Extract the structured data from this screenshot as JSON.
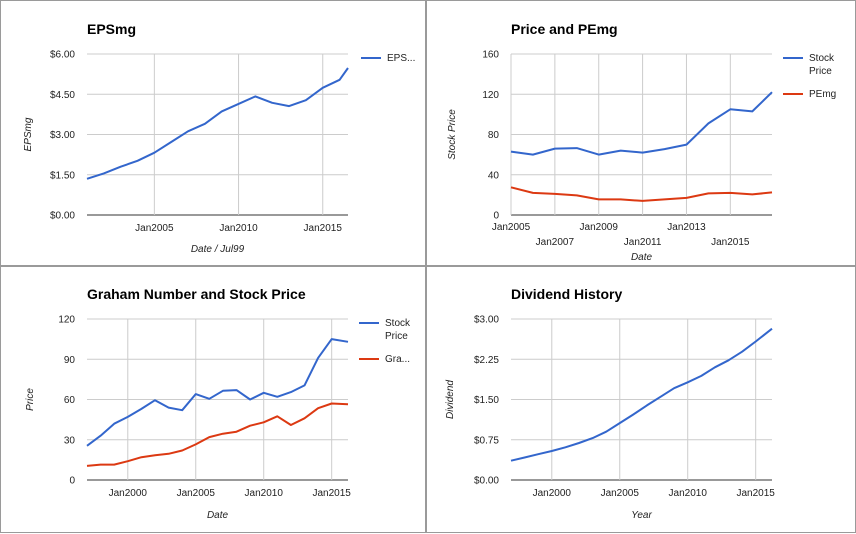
{
  "chart_data": [
    {
      "type": "line",
      "title": "EPSmg",
      "xlabel": "Date / Jul99",
      "ylabel": "EPSmg",
      "ylim": [
        0,
        6
      ],
      "yticks": [
        "$0.00",
        "$1.50",
        "$3.00",
        "$4.50",
        "$6.00"
      ],
      "yvals": [
        0,
        1.5,
        3,
        4.5,
        6
      ],
      "xrange": [
        2001,
        2016.5
      ],
      "xticks": [
        {
          "label": "Jan2005",
          "x": 2005
        },
        {
          "label": "Jan2010",
          "x": 2010
        },
        {
          "label": "Jan2015",
          "x": 2015
        }
      ],
      "grid": true,
      "legend_position": "right",
      "series": [
        {
          "name": "EPS...",
          "color": "#3366cc",
          "x": [
            2001,
            2002,
            2003,
            2004,
            2005,
            2006,
            2007,
            2008,
            2009,
            2010,
            2011,
            2012,
            2013,
            2014,
            2015,
            2016,
            2016.5
          ],
          "y": [
            1.35,
            1.55,
            1.8,
            2.02,
            2.32,
            2.72,
            3.12,
            3.4,
            3.86,
            4.14,
            4.42,
            4.18,
            4.06,
            4.28,
            4.74,
            5.04,
            5.48
          ]
        }
      ]
    },
    {
      "type": "line",
      "title": "Price and PEmg",
      "xlabel": "Date",
      "ylabel": "Stock Price",
      "ylim": [
        0,
        160
      ],
      "yticks": [
        "0",
        "40",
        "80",
        "120",
        "160"
      ],
      "yvals": [
        0,
        40,
        80,
        120,
        160
      ],
      "xrange": [
        2005,
        2016.9
      ],
      "xticks": [
        {
          "label": "Jan2005",
          "x": 2005,
          "row": 0
        },
        {
          "label": "Jan2007",
          "x": 2007,
          "row": 1
        },
        {
          "label": "Jan2009",
          "x": 2009,
          "row": 0
        },
        {
          "label": "Jan2011",
          "x": 2011,
          "row": 1
        },
        {
          "label": "Jan2013",
          "x": 2013,
          "row": 0
        },
        {
          "label": "Jan2015",
          "x": 2015,
          "row": 1
        }
      ],
      "grid": true,
      "legend_position": "right",
      "series": [
        {
          "name": "Stock Price",
          "name_lines": [
            "Stock",
            "Price"
          ],
          "color": "#3366cc",
          "x": [
            2005,
            2006,
            2007,
            2008,
            2009,
            2010,
            2011,
            2012,
            2013,
            2014,
            2015,
            2016,
            2016.9
          ],
          "y": [
            63,
            60,
            66,
            66.5,
            60,
            64,
            62,
            65.5,
            70,
            91,
            105,
            103,
            122
          ]
        },
        {
          "name": "PEmg",
          "name_lines": [
            "PEmg"
          ],
          "color": "#dc3912",
          "x": [
            2005,
            2006,
            2007,
            2008,
            2009,
            2010,
            2011,
            2012,
            2013,
            2014,
            2015,
            2016,
            2016.9
          ],
          "y": [
            27.5,
            22,
            21,
            19.5,
            15.5,
            15.5,
            14,
            15.5,
            17,
            21.5,
            22,
            20.5,
            22.5
          ]
        }
      ]
    },
    {
      "type": "line",
      "title": "Graham Number and Stock Price",
      "xlabel": "Date",
      "ylabel": "Price",
      "ylim": [
        0,
        120
      ],
      "yticks": [
        "0",
        "30",
        "60",
        "90",
        "120"
      ],
      "yvals": [
        0,
        30,
        60,
        90,
        120
      ],
      "xrange": [
        1997,
        2016.2
      ],
      "xticks": [
        {
          "label": "Jan2000",
          "x": 2000
        },
        {
          "label": "Jan2005",
          "x": 2005
        },
        {
          "label": "Jan2010",
          "x": 2010
        },
        {
          "label": "Jan2015",
          "x": 2015
        }
      ],
      "grid": true,
      "legend_position": "right",
      "series": [
        {
          "name": "Stock Price",
          "name_lines": [
            "Stock",
            "Price"
          ],
          "color": "#3366cc",
          "x": [
            1997,
            1998,
            1999,
            2000,
            2001,
            2002,
            2003,
            2004,
            2005,
            2006,
            2007,
            2008,
            2009,
            2010,
            2011,
            2012,
            2013,
            2014,
            2015,
            2016.2
          ],
          "y": [
            25.5,
            33,
            42,
            47,
            53,
            59.5,
            54,
            52,
            64,
            60.5,
            66.5,
            67,
            60,
            65,
            62,
            65.5,
            70.5,
            91,
            105,
            103
          ]
        },
        {
          "name": "Gra...",
          "name_lines": [
            "Gra..."
          ],
          "color": "#dc3912",
          "x": [
            1997,
            1998,
            1999,
            2000,
            2001,
            2002,
            2003,
            2004,
            2005,
            2006,
            2007,
            2008,
            2009,
            2010,
            2011,
            2012,
            2013,
            2014,
            2015,
            2016.2
          ],
          "y": [
            10.5,
            11.5,
            11.5,
            14,
            17,
            18.5,
            19.5,
            22,
            26.5,
            32,
            34.5,
            36,
            40.5,
            43,
            47.5,
            41,
            46,
            53.5,
            57,
            56.5
          ]
        }
      ]
    },
    {
      "type": "line",
      "title": "Dividend History",
      "xlabel": "Year",
      "ylabel": "Dividend",
      "ylim": [
        0,
        3
      ],
      "yticks": [
        "$0.00",
        "$0.75",
        "$1.50",
        "$2.25",
        "$3.00"
      ],
      "yvals": [
        0,
        0.75,
        1.5,
        2.25,
        3
      ],
      "xrange": [
        1997,
        2016.2
      ],
      "xticks": [
        {
          "label": "Jan2000",
          "x": 2000
        },
        {
          "label": "Jan2005",
          "x": 2005
        },
        {
          "label": "Jan2010",
          "x": 2010
        },
        {
          "label": "Jan2015",
          "x": 2015
        }
      ],
      "grid": true,
      "legend_position": "none",
      "series": [
        {
          "name": "",
          "color": "#3366cc",
          "x": [
            1997,
            1998,
            1999,
            2000,
            2001,
            2002,
            2003,
            2004,
            2005,
            2006,
            2007,
            2008,
            2009,
            2010,
            2011,
            2012,
            2013,
            2014,
            2015,
            2016.2
          ],
          "y": [
            0.36,
            0.42,
            0.48,
            0.54,
            0.61,
            0.69,
            0.78,
            0.9,
            1.06,
            1.22,
            1.39,
            1.55,
            1.71,
            1.82,
            1.94,
            2.1,
            2.23,
            2.39,
            2.58,
            2.82
          ]
        }
      ]
    }
  ]
}
